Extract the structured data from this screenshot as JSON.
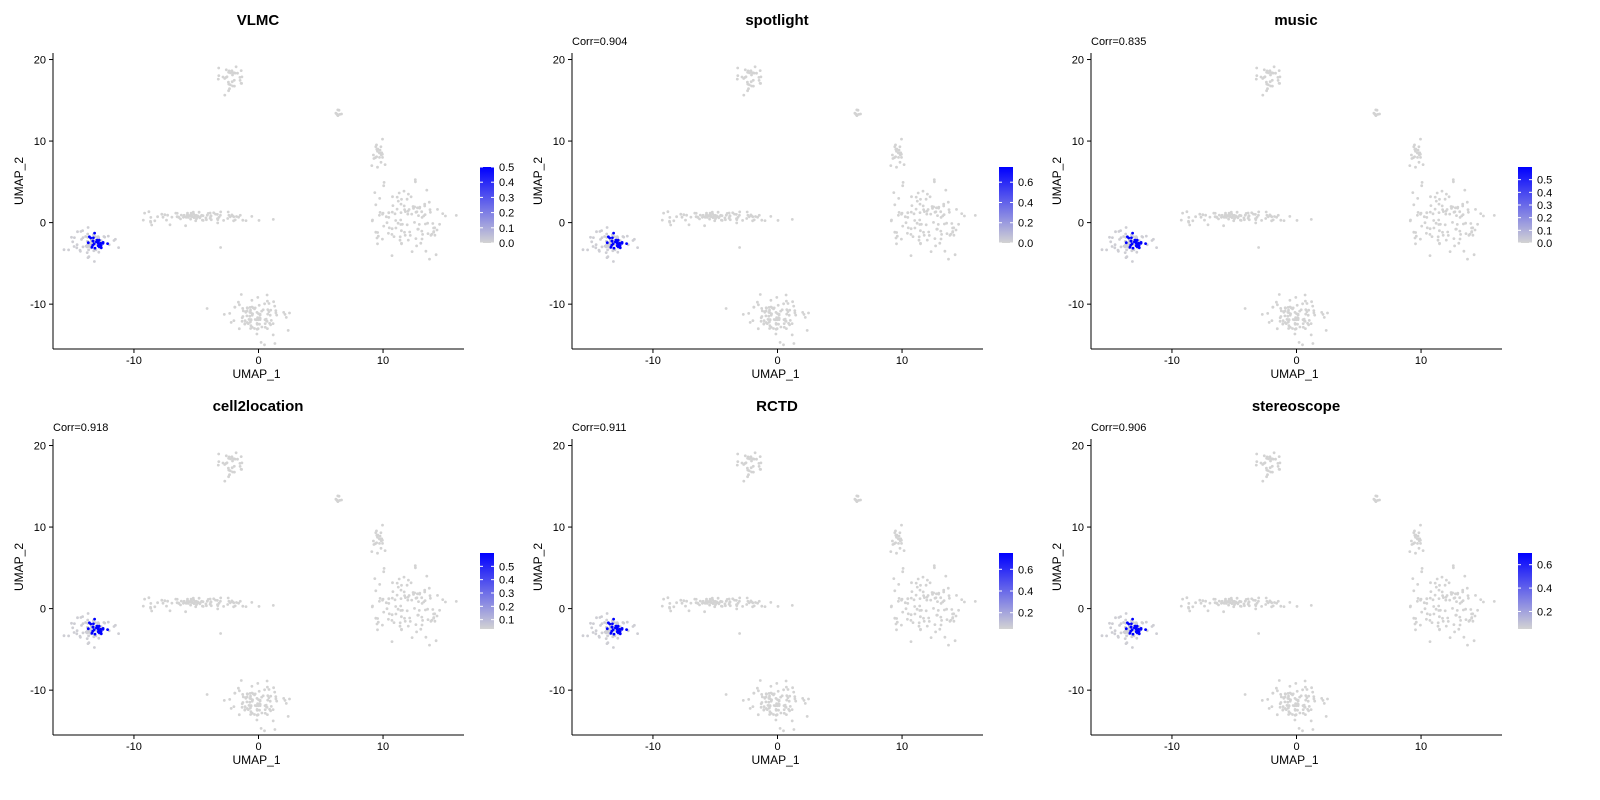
{
  "figure": {
    "panels": [
      {
        "title": "VLMC",
        "corr": "",
        "legend_ticks": [
          "0.5",
          "0.4",
          "0.3",
          "0.2",
          "0.1",
          "0.0"
        ],
        "legend_min": 0.0,
        "legend_max": 0.5
      },
      {
        "title": "spotlight",
        "corr": "Corr=0.904",
        "legend_ticks": [
          "0.6",
          "0.4",
          "0.2",
          "0.0"
        ],
        "legend_min": 0.0,
        "legend_max": 0.75
      },
      {
        "title": "music",
        "corr": "Corr=0.835",
        "legend_ticks": [
          "0.5",
          "0.4",
          "0.3",
          "0.2",
          "0.1",
          "0.0"
        ],
        "legend_min": 0.0,
        "legend_max": 0.6
      },
      {
        "title": "cell2location",
        "corr": "Corr=0.918",
        "legend_ticks": [
          "0.5",
          "0.4",
          "0.3",
          "0.2",
          "0.1"
        ],
        "legend_min": 0.03,
        "legend_max": 0.6
      },
      {
        "title": "RCTD",
        "corr": "Corr=0.911",
        "legend_ticks": [
          "0.6",
          "0.4",
          "0.2"
        ],
        "legend_min": 0.05,
        "legend_max": 0.75
      },
      {
        "title": "stereoscope",
        "corr": "Corr=0.906",
        "legend_ticks": [
          "0.6",
          "0.4",
          "0.2"
        ],
        "legend_min": 0.05,
        "legend_max": 0.7
      }
    ]
  },
  "chart_data": {
    "type": "scatter",
    "xlabel": "UMAP_1",
    "ylabel": "UMAP_2",
    "xlim": [
      -16.5,
      16.5
    ],
    "ylim": [
      -15.5,
      20.8
    ],
    "x_ticks": [
      "-10",
      "0",
      "10"
    ],
    "y_ticks": [
      "-10",
      "0",
      "10",
      "20"
    ],
    "grid": false,
    "legend_placement": "right",
    "colors": {
      "low": "#d3d3d3",
      "high": "#0000ff",
      "axis": "#000000"
    },
    "clusters": [
      {
        "x": -13.5,
        "y": -2.5,
        "sx": 0.8,
        "sy": 0.9,
        "n": 70,
        "value": 0.02
      },
      {
        "x": -13.0,
        "y": -2.3,
        "sx": 0.45,
        "sy": 0.45,
        "n": 26,
        "value": 0.55
      },
      {
        "x": -4.6,
        "y": 0.7,
        "sx": 2.1,
        "sy": 0.35,
        "n": 95,
        "value": 0.0
      },
      {
        "x": -2.2,
        "y": 17.8,
        "sx": 0.6,
        "sy": 0.7,
        "n": 34,
        "value": 0.0
      },
      {
        "x": 6.5,
        "y": 13.3,
        "sx": 0.12,
        "sy": 0.25,
        "n": 8,
        "value": 0.0
      },
      {
        "x": 9.6,
        "y": 8.6,
        "sx": 0.3,
        "sy": 1.0,
        "n": 22,
        "value": 0.0
      },
      {
        "x": 11.8,
        "y": 0.0,
        "sx": 1.5,
        "sy": 2.1,
        "n": 120,
        "value": 0.0
      },
      {
        "x": -0.3,
        "y": -11.3,
        "sx": 1.1,
        "sy": 1.1,
        "n": 105,
        "value": 0.0
      },
      {
        "x": -3.0,
        "y": -3.0,
        "sx": 0.05,
        "sy": 0.05,
        "n": 1,
        "value": 0.0
      }
    ]
  }
}
